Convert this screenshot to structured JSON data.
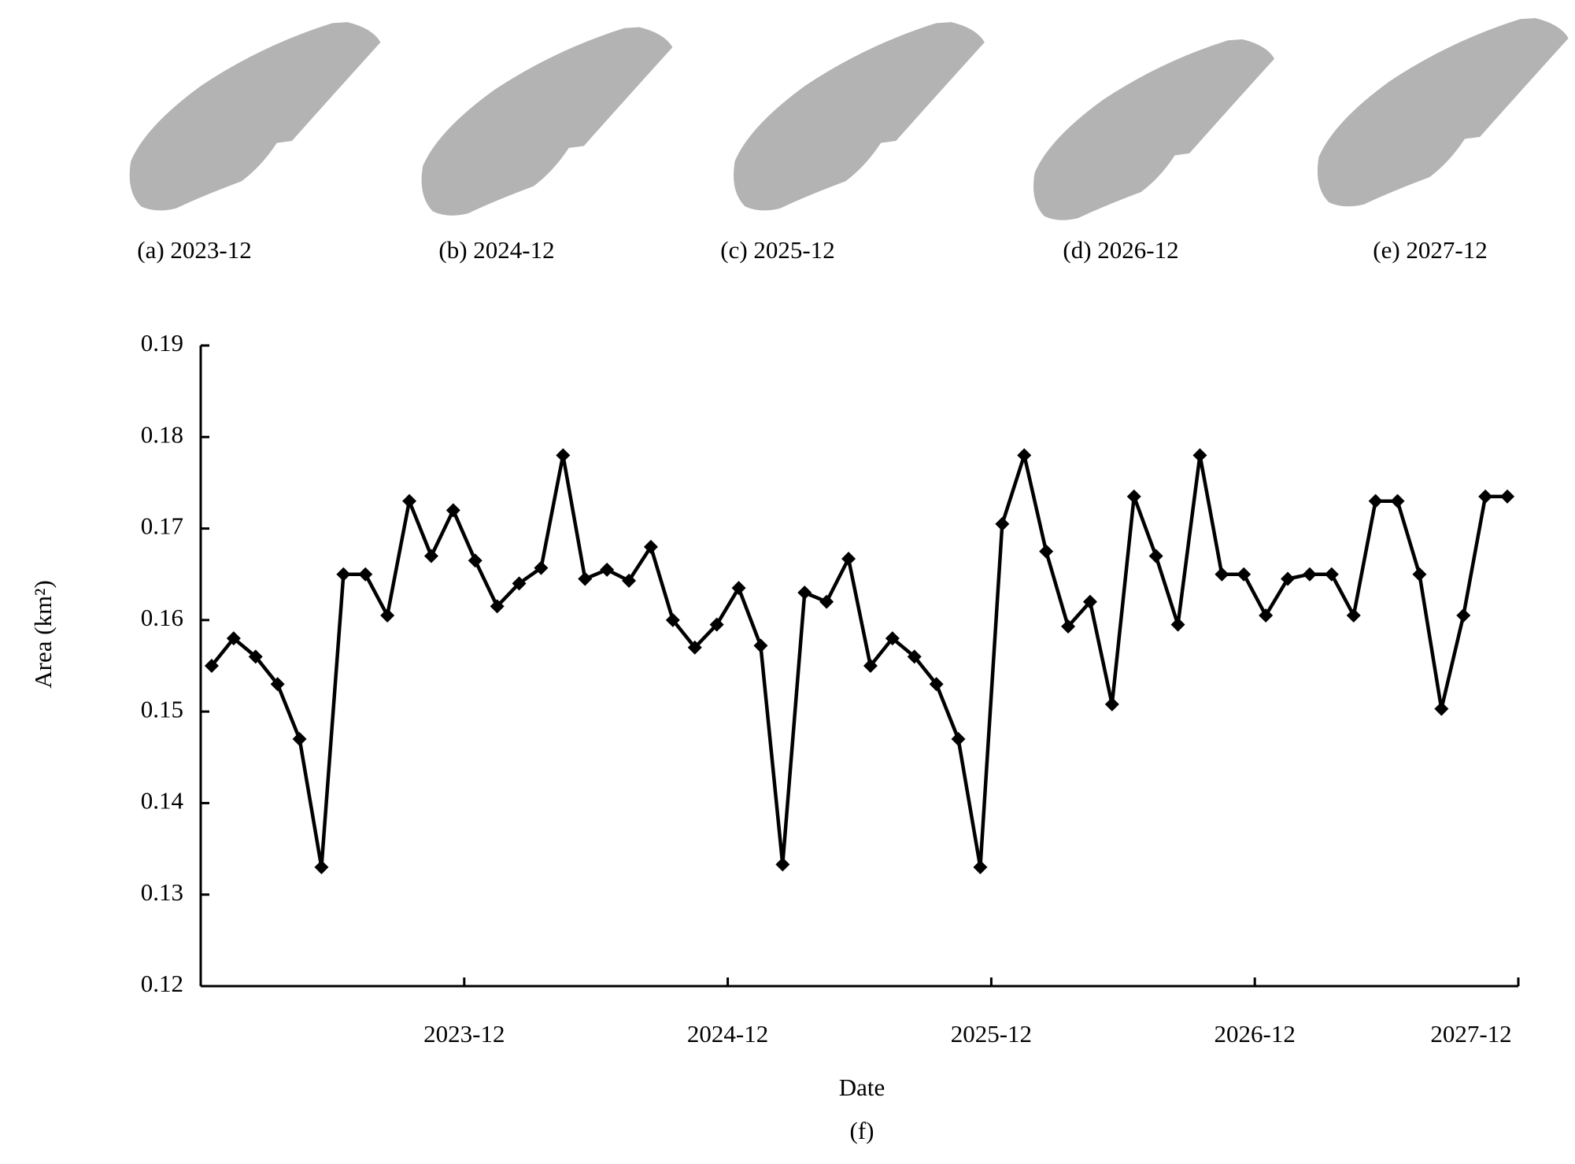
{
  "panels": [
    {
      "caption": "(a) 2023-12"
    },
    {
      "caption": "(b) 2024-12"
    },
    {
      "caption": "(c) 2025-12"
    },
    {
      "caption": "(d) 2026-12"
    },
    {
      "caption": "(e) 2027-12"
    }
  ],
  "chart_data": {
    "type": "line",
    "caption": "(f)",
    "x_label": "Date",
    "y_label": "Area (km²)",
    "categories": [
      null,
      null,
      null,
      null,
      null,
      null,
      null,
      null,
      null,
      null,
      null,
      "2023-12",
      null,
      null,
      null,
      null,
      null,
      null,
      null,
      null,
      null,
      null,
      null,
      "2024-12",
      null,
      null,
      null,
      null,
      null,
      null,
      null,
      null,
      null,
      null,
      null,
      "2025-12",
      null,
      null,
      null,
      null,
      null,
      null,
      null,
      null,
      null,
      null,
      null,
      "2026-12",
      null,
      null,
      null,
      null,
      null,
      null,
      null,
      null,
      null,
      null,
      null,
      "2027-12"
    ],
    "series": [
      {
        "name": "Area",
        "color": "#000000",
        "marker": "diamond",
        "values": [
          0.155,
          0.158,
          0.156,
          0.153,
          0.147,
          0.133,
          0.165,
          0.165,
          0.1605,
          0.173,
          0.167,
          0.172,
          0.1665,
          0.1615,
          0.164,
          0.1657,
          0.178,
          0.1645,
          0.1655,
          0.1643,
          0.168,
          0.16,
          0.157,
          0.1595,
          0.1635,
          0.1572,
          0.1333,
          0.163,
          0.162,
          0.1667,
          0.155,
          0.158,
          0.156,
          0.153,
          0.147,
          0.133,
          0.1705,
          0.178,
          0.1675,
          0.1593,
          0.162,
          0.1508,
          0.1735,
          0.167,
          0.1595,
          0.178,
          0.165,
          0.165,
          0.1605,
          0.1645,
          0.165,
          0.165,
          0.1605,
          0.173,
          0.173,
          0.165,
          0.1503,
          0.1605,
          0.1735,
          0.1735
        ]
      }
    ],
    "ylim": [
      0.12,
      0.19
    ],
    "yticks": [
      0.12,
      0.13,
      0.14,
      0.15,
      0.16,
      0.17,
      0.18,
      0.19
    ],
    "grid": false
  }
}
